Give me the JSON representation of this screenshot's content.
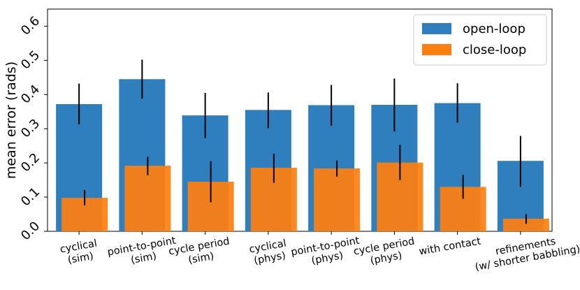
{
  "chart_data": {
    "type": "bar",
    "ylabel": "mean error (rads)",
    "xlabel": "",
    "ylim": [
      0,
      0.65
    ],
    "yticks": [
      "0.0",
      "0.1",
      "0.2",
      "0.3",
      "0.4",
      "0.5",
      "0.6"
    ],
    "grid": false,
    "legend_position": "top-right",
    "categories": [
      [
        "cyclical",
        "(sim)"
      ],
      [
        "point-to-point",
        "(sim)"
      ],
      [
        "cycle period",
        "(sim)"
      ],
      [
        "cyclical",
        "(phys)"
      ],
      [
        "point-to-point",
        "(phys)"
      ],
      [
        "cycle period",
        "(phys)"
      ],
      [
        "with contact"
      ],
      [
        "refinements",
        "(w/ shorter babbling)"
      ]
    ],
    "series": [
      {
        "name": "open-loop",
        "color": "#2f7fbe",
        "values": [
          0.372,
          0.445,
          0.339,
          0.355,
          0.369,
          0.37,
          0.375,
          0.206
        ],
        "err_low": [
          0.313,
          0.388,
          0.272,
          0.302,
          0.309,
          0.292,
          0.318,
          0.13
        ],
        "err_high": [
          0.432,
          0.502,
          0.405,
          0.406,
          0.428,
          0.447,
          0.433,
          0.279
        ]
      },
      {
        "name": "close-loop",
        "color": "#ff7f0e",
        "values": [
          0.098,
          0.192,
          0.145,
          0.186,
          0.184,
          0.201,
          0.13,
          0.037
        ],
        "err_low": [
          0.076,
          0.164,
          0.085,
          0.142,
          0.16,
          0.15,
          0.095,
          0.022
        ],
        "err_high": [
          0.121,
          0.218,
          0.205,
          0.227,
          0.207,
          0.253,
          0.165,
          0.05
        ]
      }
    ]
  }
}
